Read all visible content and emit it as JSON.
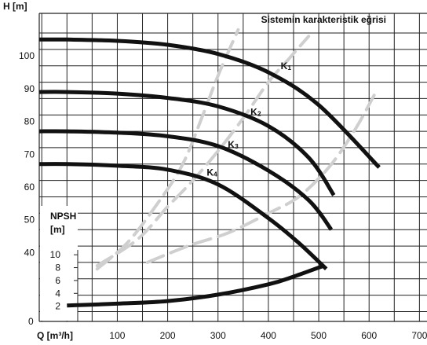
{
  "chart_data": {
    "type": "line",
    "y_axis_title": "H [m]",
    "x_axis_title": "Q [m³/h]",
    "npsh_axis_title_1": "NPSH",
    "npsh_axis_title_2": "[m]",
    "system_curve_label": "Sistemin karakteristik eğrisi",
    "xlim": [
      -55,
      715
    ],
    "x_ticks": [
      "100",
      "200",
      "300",
      "400",
      "500",
      "600",
      "700"
    ],
    "x_tick_values": [
      100,
      200,
      300,
      400,
      500,
      600,
      700
    ],
    "h_ticks": [
      "100",
      "90",
      "80",
      "70",
      "60",
      "50",
      "40"
    ],
    "h_tick_values": [
      100,
      90,
      80,
      70,
      60,
      50,
      40
    ],
    "h_range": [
      37,
      107
    ],
    "npsh_ticks": [
      "10",
      "8",
      "6",
      "4",
      "2"
    ],
    "npsh_tick_values": [
      10,
      8,
      6,
      4,
      2
    ],
    "npsh_range": [
      0,
      11
    ],
    "zero_label": "0",
    "grid": true,
    "colors": {
      "pump_curve": "#111111",
      "system_curve": "#cfcfcf",
      "grid": "#222222",
      "background": "#ffffff"
    },
    "series": [
      {
        "name": "K1",
        "sub": "1",
        "label_pos": [
          435,
          96
        ],
        "x": [
          -55,
          0,
          100,
          200,
          300,
          400,
          500,
          620
        ],
        "y": [
          105,
          105,
          104.6,
          103.4,
          100.6,
          95,
          85,
          66
        ]
      },
      {
        "name": "K2",
        "sub": "2",
        "label_pos": [
          375,
          82
        ],
        "x": [
          -55,
          0,
          100,
          200,
          300,
          400,
          480,
          530
        ],
        "y": [
          89,
          89,
          88.5,
          87.2,
          84.6,
          78.6,
          69,
          57.5
        ]
      },
      {
        "name": "K3",
        "sub": "3",
        "label_pos": [
          330,
          72
        ],
        "x": [
          -55,
          0,
          100,
          200,
          300,
          400,
          480,
          525
        ],
        "y": [
          77,
          77,
          76.6,
          75.5,
          72.5,
          65,
          56,
          47
        ]
      },
      {
        "name": "K4",
        "sub": "4",
        "label_pos": [
          288,
          63.5
        ],
        "x": [
          -55,
          0,
          100,
          200,
          300,
          400,
          460,
          515
        ],
        "y": [
          67,
          67,
          66.5,
          65.3,
          60.8,
          50.5,
          43,
          35
        ]
      }
    ],
    "system_curves": [
      {
        "x": [
          60,
          140,
          200,
          250,
          300,
          350,
          400,
          440,
          480
        ],
        "y": [
          36,
          44,
          54,
          62,
          71,
          81,
          92,
          99,
          106
        ]
      },
      {
        "x": [
          60,
          120,
          180,
          230,
          270,
          300,
          340
        ],
        "y": [
          35,
          43,
          55,
          67,
          82,
          94,
          108
        ]
      },
      {
        "x": [
          160,
          240,
          320,
          400,
          460,
          520,
          570,
          610
        ],
        "y": [
          37,
          42,
          46,
          52,
          57,
          66,
          77,
          88
        ]
      }
    ],
    "npsh_curve": {
      "x": [
        0,
        100,
        200,
        300,
        400,
        450,
        510
      ],
      "y": [
        2.1,
        2.4,
        2.8,
        3.8,
        5.4,
        6.6,
        8.3
      ]
    }
  }
}
